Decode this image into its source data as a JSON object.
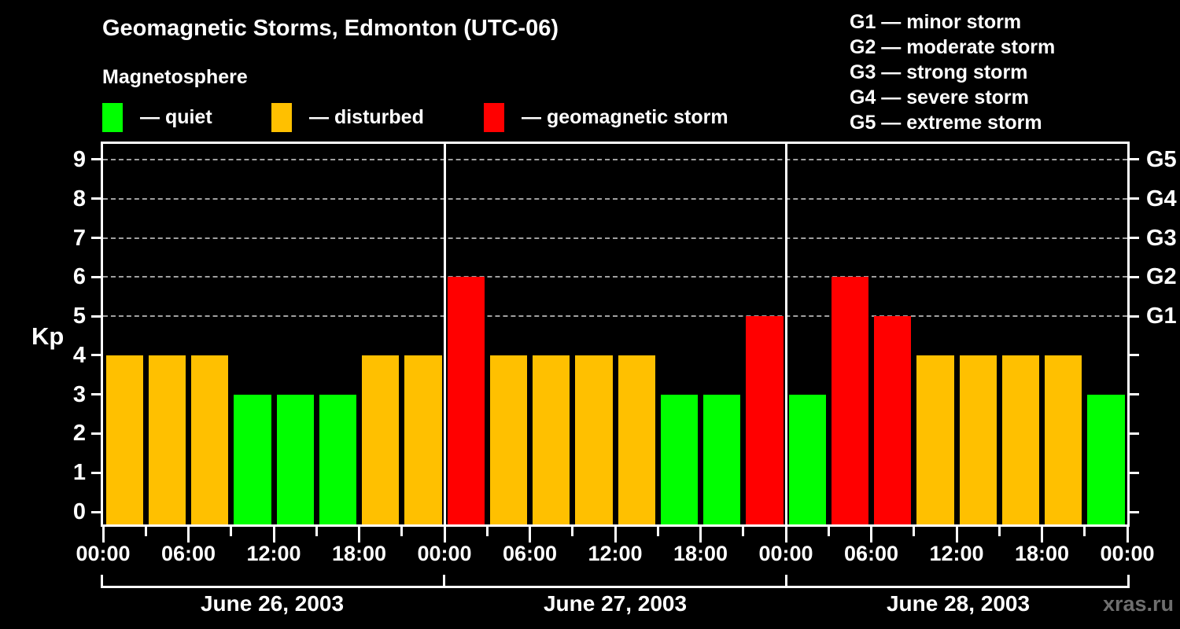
{
  "header": {
    "title": "Geomagnetic Storms, Edmonton (UTC-06)",
    "subtitle": "Magnetosphere"
  },
  "legend": {
    "items": [
      {
        "key": "quiet",
        "label": "— quiet",
        "color": "#00FF00"
      },
      {
        "key": "disturbed",
        "label": "— disturbed",
        "color": "#FFC000"
      },
      {
        "key": "storm",
        "label": "— geomagnetic storm",
        "color": "#FF0000"
      }
    ]
  },
  "g_legend": {
    "items": [
      {
        "label": "G1 — minor storm"
      },
      {
        "label": "G2 — moderate storm"
      },
      {
        "label": "G3 — strong storm"
      },
      {
        "label": "G4 — severe storm"
      },
      {
        "label": "G5 — extreme storm"
      }
    ]
  },
  "watermark": "xras.ru",
  "colors": {
    "background": "#000000",
    "axis": "#FFFFFF",
    "grid": "#A0A0A0",
    "quiet": "#00FF00",
    "disturbed": "#FFC000",
    "storm": "#FF0000",
    "watermark_text": "#6E6E6E"
  },
  "chart_data": {
    "type": "bar",
    "title": "Geomagnetic Storms, Edmonton (UTC-06)",
    "xlabel": "",
    "ylabel": "Kp",
    "ylim": [
      0,
      9
    ],
    "bar_interval_hours": 3,
    "grid": "horizontal dashed lines at Kp 5,6,7,8,9 only",
    "grid_levels": [
      5,
      6,
      7,
      8,
      9
    ],
    "y_ticks": [
      0,
      1,
      2,
      3,
      4,
      5,
      6,
      7,
      8,
      9
    ],
    "right_axis": [
      {
        "kp": 5,
        "label": "G1"
      },
      {
        "kp": 6,
        "label": "G2"
      },
      {
        "kp": 7,
        "label": "G3"
      },
      {
        "kp": 8,
        "label": "G4"
      },
      {
        "kp": 9,
        "label": "G5"
      }
    ],
    "x_tick_labels": [
      "00:00",
      "06:00",
      "12:00",
      "18:00",
      "00:00",
      "06:00",
      "12:00",
      "18:00",
      "00:00",
      "06:00",
      "12:00",
      "18:00",
      "00:00"
    ],
    "days": [
      {
        "date": "June 26, 2003",
        "values": [
          4,
          4,
          4,
          3,
          3,
          3,
          4,
          4
        ]
      },
      {
        "date": "June 27, 2003",
        "values": [
          6,
          4,
          4,
          4,
          4,
          3,
          3,
          5
        ]
      },
      {
        "date": "June 28, 2003",
        "values": [
          3,
          6,
          5,
          4,
          4,
          4,
          4,
          3
        ]
      }
    ],
    "color_rules": {
      "quiet_kp_max": 3,
      "disturbed_kp": 4,
      "storm_kp_min": 5
    },
    "legend_position": "top-left",
    "g_legend_position": "top-right"
  }
}
